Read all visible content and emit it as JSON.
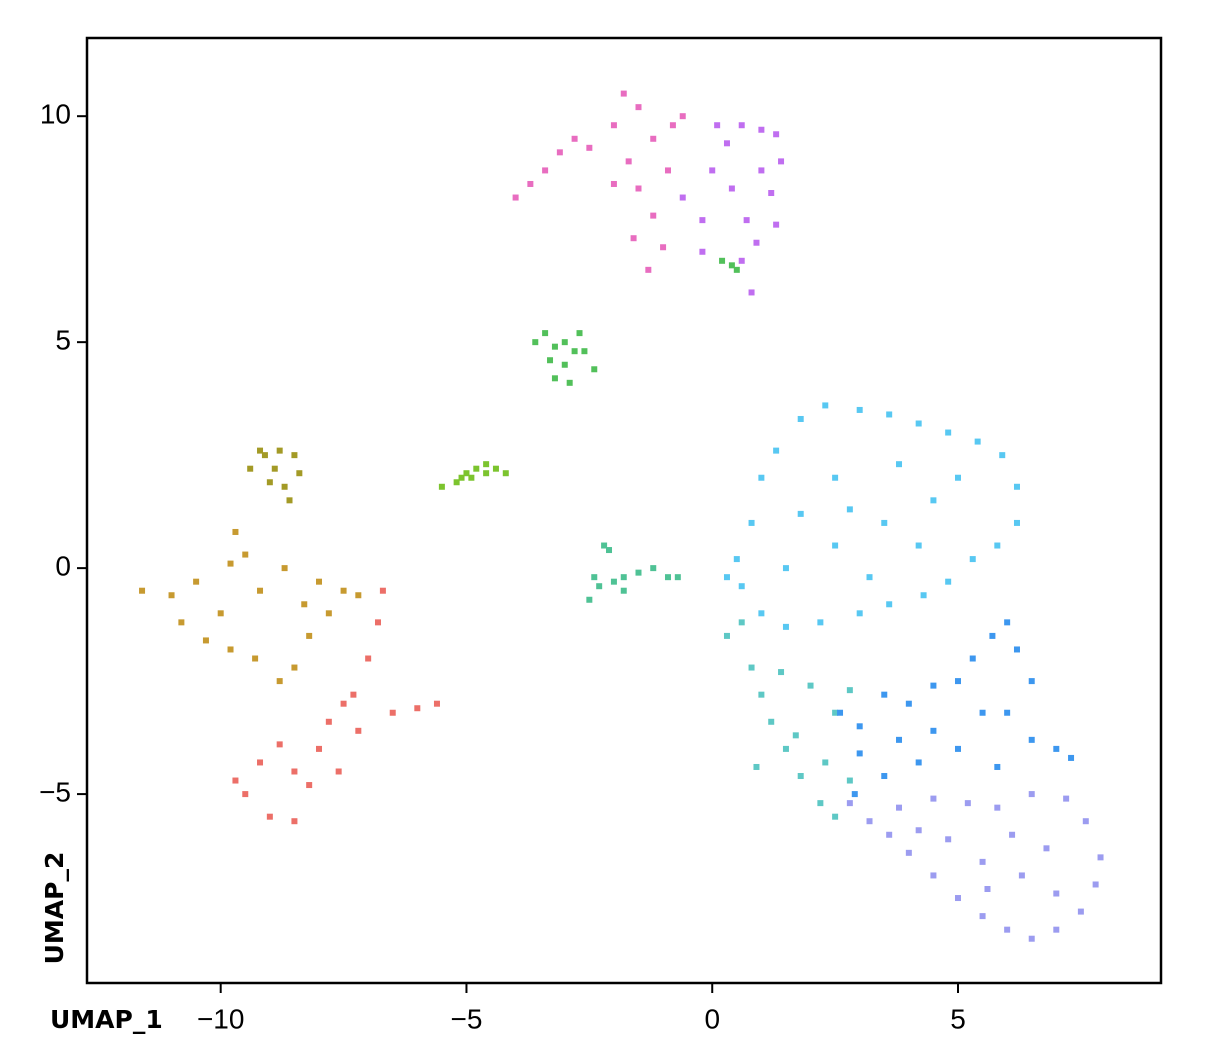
{
  "chart_data": {
    "type": "scatter",
    "xlabel": "UMAP_1",
    "ylabel": "UMAP_2",
    "xlim": [
      -12.72,
      9.13
    ],
    "ylim": [
      -9.18,
      11.73
    ],
    "xticks": [
      {
        "value": -10,
        "label": "−10"
      },
      {
        "value": -5,
        "label": "−5"
      },
      0,
      5
    ],
    "yticks": [
      {
        "value": -5,
        "label": "−5"
      },
      0,
      5,
      10
    ],
    "grid": false,
    "series": [
      {
        "color": "#ec6f68",
        "x": [
          -9.5,
          -9,
          -8.5,
          -8.2,
          -9.2,
          -8.8,
          -8,
          -7.8,
          -7.3,
          -7,
          -6.8,
          -6.7,
          -7.2,
          -6.5,
          -6,
          -5.6,
          -7.6,
          -8.5,
          -9.7,
          -7.5
        ],
        "y": [
          -5,
          -5.5,
          -5.6,
          -4.8,
          -4.3,
          -3.9,
          -4,
          -3.4,
          -2.8,
          -2,
          -1.2,
          -0.5,
          -3.6,
          -3.2,
          -3.1,
          -3,
          -4.5,
          -4.5,
          -4.7,
          -3
        ]
      },
      {
        "color": "#c79a30",
        "x": [
          -11.6,
          -11,
          -10.5,
          -10,
          -10.8,
          -9.8,
          -9.3,
          -8.8,
          -8.5,
          -8.2,
          -7.8,
          -7.5,
          -7.2,
          -8,
          -8.7,
          -9.2,
          -9.5,
          -8.3,
          -9.8,
          -10.3,
          -9.7
        ],
        "y": [
          -0.5,
          -0.6,
          -0.3,
          -1,
          -1.2,
          -1.8,
          -2,
          -2.5,
          -2.2,
          -1.5,
          -1,
          -0.5,
          -0.6,
          -0.3,
          0,
          -0.5,
          0.3,
          -0.8,
          0.1,
          -1.6,
          0.8
        ]
      },
      {
        "color": "#a39a26",
        "x": [
          -9.4,
          -9.1,
          -8.8,
          -8.5,
          -8.4,
          -8.7,
          -9,
          -8.6,
          -9.2,
          -8.9
        ],
        "y": [
          2.2,
          2.5,
          2.6,
          2.5,
          2.1,
          1.8,
          1.9,
          1.5,
          2.6,
          2.2
        ]
      },
      {
        "color": "#7cc42e",
        "x": [
          -5.5,
          -5.2,
          -5,
          -4.8,
          -4.6,
          -4.4,
          -4.2,
          -4.9,
          -4.6,
          -5.1
        ],
        "y": [
          1.8,
          1.9,
          2.1,
          2.2,
          2.1,
          2.2,
          2.1,
          2,
          2.3,
          2
        ]
      },
      {
        "color": "#52c05a",
        "x": [
          -3.6,
          -3.4,
          -3.2,
          -3,
          -2.8,
          -2.6,
          -2.4,
          -3,
          -3.2,
          -2.9,
          -3.3,
          -2.7,
          0.2,
          0.4,
          0.5
        ],
        "y": [
          5,
          5.2,
          4.9,
          5,
          4.8,
          4.8,
          4.4,
          4.5,
          4.2,
          4.1,
          4.6,
          5.2,
          6.8,
          6.7,
          6.6
        ]
      },
      {
        "color": "#4fc295",
        "x": [
          -2.5,
          -2.3,
          -2,
          -1.8,
          -1.5,
          -1.2,
          -0.9,
          -0.7,
          -2.1,
          -2.2,
          -1.8,
          -2.4
        ],
        "y": [
          -0.7,
          -0.4,
          -0.3,
          -0.2,
          -0.1,
          0,
          -0.2,
          -0.2,
          0.4,
          0.5,
          -0.5,
          -0.2
        ]
      },
      {
        "color": "#e86dc0",
        "x": [
          -4,
          -3.7,
          -3.4,
          -3.1,
          -2.8,
          -2.5,
          -2,
          -1.8,
          -1.5,
          -1.7,
          -1.5,
          -1.2,
          -1.6,
          -1,
          -0.8,
          -2,
          -1.3,
          -0.9,
          -1.2,
          -0.6
        ],
        "y": [
          8.2,
          8.5,
          8.8,
          9.2,
          9.5,
          9.3,
          9.8,
          10.5,
          10.2,
          9,
          8.4,
          7.8,
          7.3,
          7.1,
          9.8,
          8.5,
          6.6,
          8.8,
          9.5,
          10
        ]
      },
      {
        "color": "#c06ef0",
        "x": [
          -0.6,
          -0.2,
          0,
          0.3,
          0.6,
          1,
          1.3,
          1.4,
          1.2,
          1.3,
          0.9,
          0.6,
          0.8,
          -0.2,
          0.4,
          0.1,
          1,
          0.7
        ],
        "y": [
          8.2,
          7.7,
          8.8,
          9.4,
          9.8,
          9.7,
          9.6,
          9,
          8.3,
          7.6,
          7.2,
          6.8,
          6.1,
          7,
          8.4,
          9.8,
          8.8,
          7.7
        ]
      },
      {
        "color": "#58c8f2",
        "x": [
          0.5,
          0.8,
          0.6,
          1,
          1.3,
          1.8,
          2.3,
          3,
          3.6,
          4.2,
          4.8,
          5.4,
          5.9,
          6.2,
          6.2,
          5.8,
          5.3,
          4.8,
          4.3,
          3.6,
          3,
          2.2,
          1.5,
          1,
          1.5,
          2.5,
          3.5,
          4.5,
          2.5,
          3.8,
          5,
          1.8,
          3.2,
          4.2,
          0.3,
          2.8
        ],
        "y": [
          0.2,
          1,
          -0.4,
          2,
          2.6,
          3.3,
          3.6,
          3.5,
          3.4,
          3.2,
          3,
          2.8,
          2.5,
          1.8,
          1,
          0.5,
          0.2,
          -0.3,
          -0.6,
          -0.8,
          -1,
          -1.2,
          -1.3,
          -1,
          0,
          0.5,
          1,
          1.5,
          2,
          2.3,
          2,
          1.2,
          -0.2,
          0.5,
          -0.2,
          1.3
        ]
      },
      {
        "color": "#5ec8c5",
        "x": [
          0.3,
          0.6,
          0.8,
          1,
          1.2,
          1.5,
          1.8,
          2.3,
          2.8,
          2.5,
          2,
          1.7,
          0.9,
          2.2,
          2.5,
          2.8,
          1.4
        ],
        "y": [
          -1.5,
          -1.2,
          -2.2,
          -2.8,
          -3.4,
          -4,
          -4.6,
          -4.3,
          -4.7,
          -3.2,
          -2.6,
          -3.7,
          -4.4,
          -5.2,
          -5.5,
          -2.7,
          -2.3
        ]
      },
      {
        "color": "#3d97ef",
        "x": [
          2.6,
          3,
          3.5,
          4,
          4.5,
          5,
          5.3,
          5.7,
          6,
          6.2,
          6.5,
          6,
          6.5,
          7,
          7.3,
          5.8,
          5,
          4.2,
          3.5,
          3,
          4.5,
          5.5,
          3.8,
          2.9
        ],
        "y": [
          -3.2,
          -3.5,
          -2.8,
          -3,
          -2.6,
          -2.5,
          -2,
          -1.5,
          -1.2,
          -1.8,
          -2.5,
          -3.2,
          -3.8,
          -4,
          -4.2,
          -4.4,
          -4,
          -4.3,
          -4.6,
          -4.1,
          -3.6,
          -3.2,
          -3.8,
          -5
        ]
      },
      {
        "color": "#9c9cf0",
        "x": [
          2.8,
          3.2,
          3.6,
          4,
          4.5,
          5,
          5.5,
          6,
          6.5,
          7,
          7.5,
          7.8,
          7.9,
          7.6,
          7.2,
          6.5,
          5.8,
          5.2,
          4.5,
          3.8,
          4.8,
          5.5,
          6.3,
          6.8,
          6.1,
          7,
          5.6,
          4.2
        ],
        "y": [
          -5.2,
          -5.6,
          -5.9,
          -6.3,
          -6.8,
          -7.3,
          -7.7,
          -8,
          -8.2,
          -8,
          -7.6,
          -7,
          -6.4,
          -5.6,
          -5.1,
          -5,
          -5.3,
          -5.2,
          -5.1,
          -5.3,
          -6,
          -6.5,
          -6.8,
          -6.2,
          -5.9,
          -7.2,
          -7.1,
          -5.8
        ]
      }
    ]
  }
}
